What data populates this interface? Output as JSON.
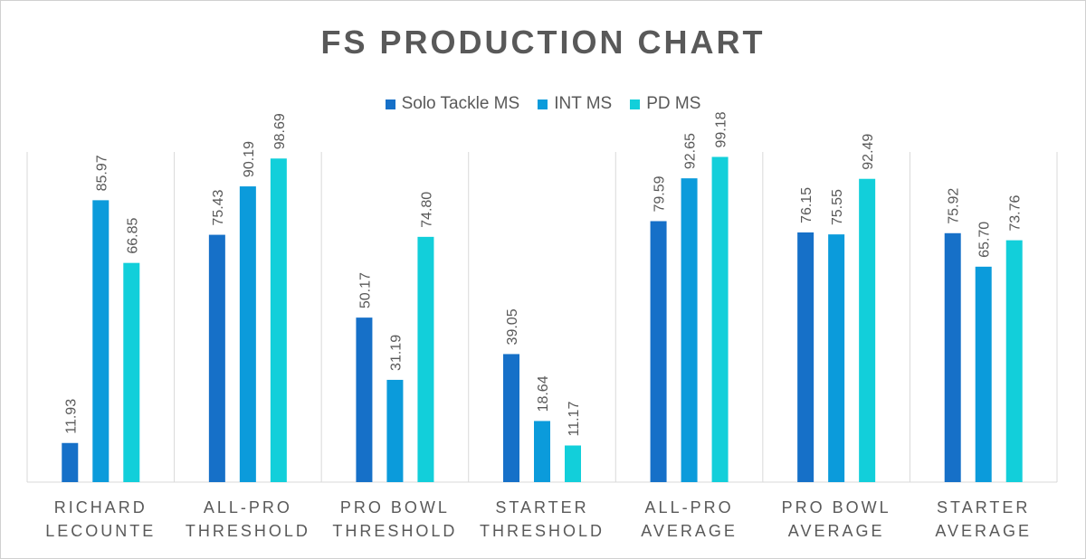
{
  "chart_data": {
    "type": "bar",
    "title": "FS PRODUCTION CHART",
    "categories": [
      [
        "RICHARD",
        "LECOUNTE"
      ],
      [
        "ALL-PRO",
        "THRESHOLD"
      ],
      [
        "PRO BOWL",
        "THRESHOLD"
      ],
      [
        "STARTER",
        "THRESHOLD"
      ],
      [
        "ALL-PRO",
        "AVERAGE"
      ],
      [
        "PRO BOWL",
        "AVERAGE"
      ],
      [
        "STARTER",
        "AVERAGE"
      ]
    ],
    "series": [
      {
        "name": "Solo Tackle MS",
        "color": "#1670c8",
        "values": [
          11.93,
          75.43,
          50.17,
          39.05,
          79.59,
          76.15,
          75.92
        ],
        "labels": [
          "11.93",
          "75.43",
          "50.17",
          "39.05",
          "79.59",
          "76.15",
          "75.92"
        ]
      },
      {
        "name": "INT MS",
        "color": "#0b9bdb",
        "values": [
          85.97,
          90.19,
          31.19,
          18.64,
          92.65,
          75.55,
          65.7
        ],
        "labels": [
          "85.97",
          "90.19",
          "31.19",
          "18.64",
          "92.65",
          "75.55",
          "65.70"
        ]
      },
      {
        "name": "PD MS",
        "color": "#12cfda",
        "values": [
          66.85,
          98.69,
          74.8,
          11.17,
          99.18,
          92.49,
          73.76
        ],
        "labels": [
          "66.85",
          "98.69",
          "74.80",
          "11.17",
          "99.18",
          "92.49",
          "73.76"
        ]
      }
    ],
    "ylim": [
      0,
      100
    ],
    "grid": false,
    "legend_position": "top"
  }
}
